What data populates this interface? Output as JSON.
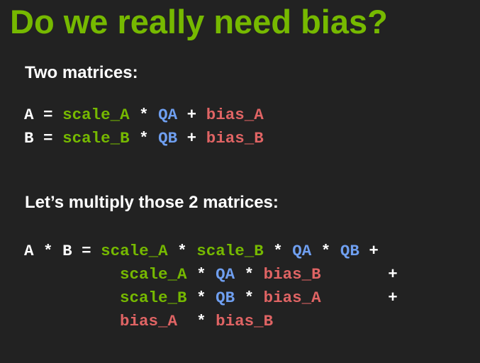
{
  "slide": {
    "title": "Do we really need bias?",
    "heading_1": "Two matrices:",
    "heading_2": "Let’s multiply those 2 matrices:"
  },
  "colors": {
    "background": "#222222",
    "title_green": "#76b900",
    "scale_green": "#76b900",
    "q_blue": "#6f9ff0",
    "bias_red": "#e06464",
    "text_white": "#ffffff"
  },
  "defs": {
    "a": {
      "lhs": "A",
      "eq": "=",
      "scale": "scale_A",
      "op1": "*",
      "q": "QA",
      "op2": "+",
      "bias": "bias_A"
    },
    "b": {
      "lhs": "B",
      "eq": "=",
      "scale": "scale_B",
      "op1": "*",
      "q": "QB",
      "op2": "+",
      "bias": "bias_B"
    }
  },
  "product": {
    "lhs_a": "A",
    "lhs_op": "*",
    "lhs_b": "B",
    "eq": "=",
    "l1": {
      "s1": "scale_A",
      "o1": "*",
      "s2": "scale_B",
      "o2": "*",
      "q1": "QA",
      "o3": "*",
      "q2": "QB",
      "plus": "+"
    },
    "l2": {
      "s": "scale_A",
      "o1": "*",
      "q": "QA",
      "o2": "*",
      "bias": "bias_B",
      "plus": "+"
    },
    "l3": {
      "s": "scale_B",
      "o1": "*",
      "q": "QB",
      "o2": "*",
      "bias": "bias_A",
      "plus": "+"
    },
    "l4": {
      "b1": "bias_A",
      "o1": "*",
      "b2": "bias_B"
    }
  }
}
